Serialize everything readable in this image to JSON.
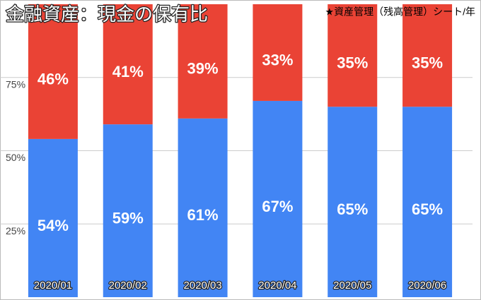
{
  "chart_data": {
    "type": "stacked-bar",
    "title": "金融資産：現金の保有比",
    "subtitle": "★資産管理（残高管理）シート/年",
    "categories": [
      "2020/01",
      "2020/02",
      "2020/03",
      "2020/04",
      "2020/05",
      "2020/06"
    ],
    "series": [
      {
        "color": "#4285f4",
        "values": [
          54,
          59,
          61,
          67,
          65,
          65
        ],
        "value_labels": [
          "54%",
          "59%",
          "61%",
          "67%",
          "65%",
          "65%"
        ]
      },
      {
        "color": "#ea4335",
        "values": [
          46,
          41,
          39,
          33,
          35,
          35
        ],
        "value_labels": [
          "46%",
          "41%",
          "39%",
          "33%",
          "35%",
          "35%"
        ]
      }
    ],
    "ylim": [
      0,
      100
    ],
    "yticks": [
      {
        "value": 25,
        "label": "25%"
      },
      {
        "value": 50,
        "label": "50%"
      },
      {
        "value": 75,
        "label": "75%"
      }
    ],
    "grid": true
  }
}
